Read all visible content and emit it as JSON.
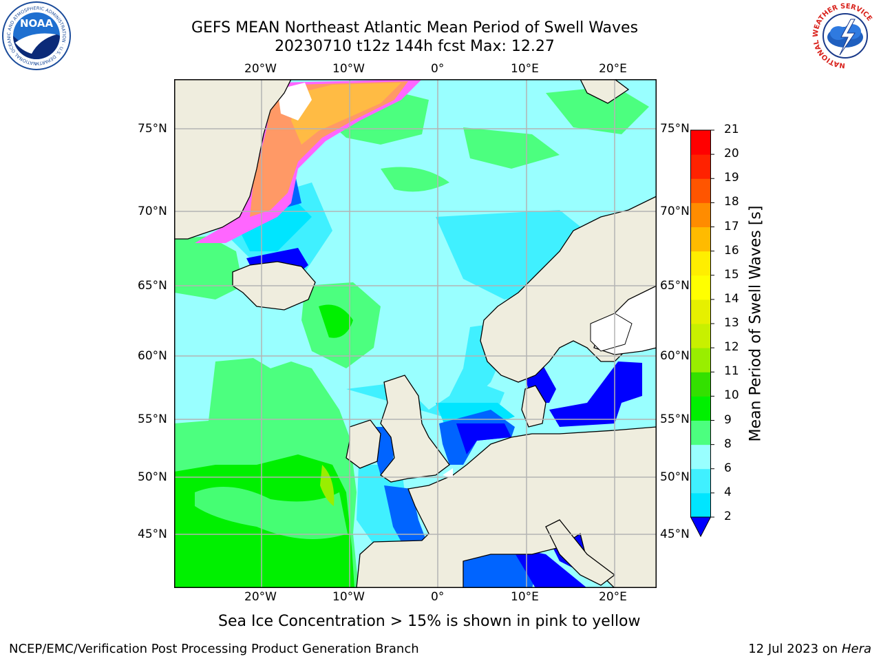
{
  "header": {
    "title_line1": "GEFS MEAN Northeast Atlantic Mean Period of Swell Waves",
    "title_line2": "20230710 t12z 144h fcst   Max: 12.27"
  },
  "logos": {
    "noaa_text": "NOAA",
    "noaa_ring_text": "NATIONAL OCEANIC AND ATMOSPHERIC ADMINISTRATION · U.S. DEPARTMENT OF COMMERCE",
    "nws_ring_text": "NATIONAL WEATHER SERVICE"
  },
  "map": {
    "lon_labels": [
      "20°W",
      "10°W",
      "0°",
      "10°E",
      "20°E"
    ],
    "lat_labels": [
      "75°N",
      "70°N",
      "65°N",
      "60°N",
      "55°N",
      "50°N",
      "45°N"
    ],
    "extent": {
      "lon_min": -30,
      "lon_max": 25,
      "lat_min": 41,
      "lat_max": 78
    },
    "colors": {
      "land": "#efedde",
      "coast": "#000000",
      "grid": "#b3b3b3",
      "ice": "#ffffff"
    }
  },
  "colorbar": {
    "label": "Mean Period of Swell Waves [s]",
    "ticks": [
      "2",
      "4",
      "6",
      "8",
      "9",
      "10",
      "11",
      "12",
      "13",
      "14",
      "15",
      "16",
      "17",
      "18",
      "19",
      "20",
      "21"
    ],
    "colors": [
      "#0064ff",
      "#00e5ff",
      "#40f0ff",
      "#99ffff",
      "#4cff7f",
      "#00f000",
      "#33e000",
      "#99ee00",
      "#c8f000",
      "#e6f000",
      "#ffff00",
      "#ffee00",
      "#ffbb00",
      "#ff8c00",
      "#ff5500",
      "#ff2200",
      "#ff0000"
    ],
    "under_color": "#0000ff"
  },
  "caption": "Sea Ice Concentration > 15% is shown in pink to yellow",
  "footer": {
    "left": "NCEP/EMC/Verification Post Processing Product Generation Branch",
    "right_prefix": "12 Jul 2023 on ",
    "right_host": "Hera"
  }
}
